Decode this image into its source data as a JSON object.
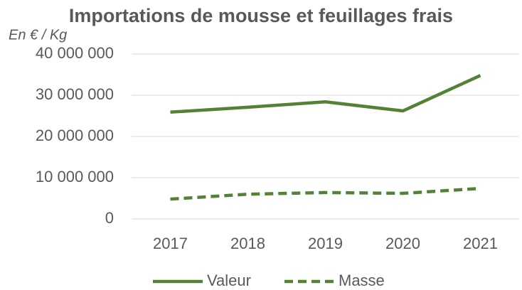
{
  "chart_data": {
    "type": "line",
    "title": "Importations de mousse et feuillages frais",
    "y_label": "En € / Kg",
    "categories": [
      "2017",
      "2018",
      "2019",
      "2020",
      "2021"
    ],
    "series": [
      {
        "name": "Valeur",
        "color": "#548235",
        "dashed": false,
        "values": [
          25900000,
          27100000,
          28400000,
          26200000,
          34800000
        ]
      },
      {
        "name": "Masse",
        "color": "#548235",
        "dashed": true,
        "values": [
          4800000,
          6000000,
          6400000,
          6200000,
          7400000
        ]
      }
    ],
    "ylim": [
      0,
      40000000
    ],
    "yticks": [
      0,
      {
        "value": 10000000,
        "label": "10 000 000"
      },
      {
        "value": 20000000,
        "label": "20 000 000"
      },
      {
        "value": 30000000,
        "label": "30 000 000"
      },
      {
        "value": 40000000,
        "label": "40 000 000"
      }
    ],
    "grid": true,
    "legend": "bottom"
  }
}
